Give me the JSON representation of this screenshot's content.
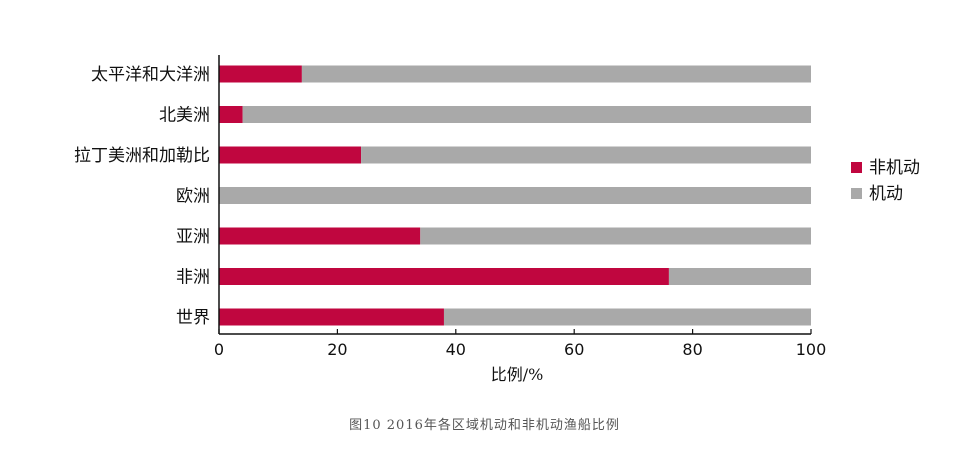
{
  "chart_data": {
    "type": "bar",
    "orientation": "horizontal",
    "stacked": true,
    "categories": [
      "太平洋和大洋洲",
      "北美洲",
      "拉丁美洲和加勒比",
      "欧洲",
      "亚洲",
      "非洲",
      "世界"
    ],
    "series": [
      {
        "name": "非机动",
        "color": "#c0063f",
        "values": [
          14,
          4,
          24,
          0,
          34,
          76,
          38
        ]
      },
      {
        "name": "机动",
        "color": "#a9a9a9",
        "values": [
          86,
          96,
          76,
          100,
          66,
          24,
          62
        ]
      }
    ],
    "xlabel": "比例/%",
    "xlim": [
      0,
      100
    ],
    "xticks": [
      "0",
      "20",
      "40",
      "60",
      "80",
      "100"
    ],
    "grid": false,
    "legend": "right"
  },
  "caption": "图10 2016年各区域机动和非机动渔船比例"
}
